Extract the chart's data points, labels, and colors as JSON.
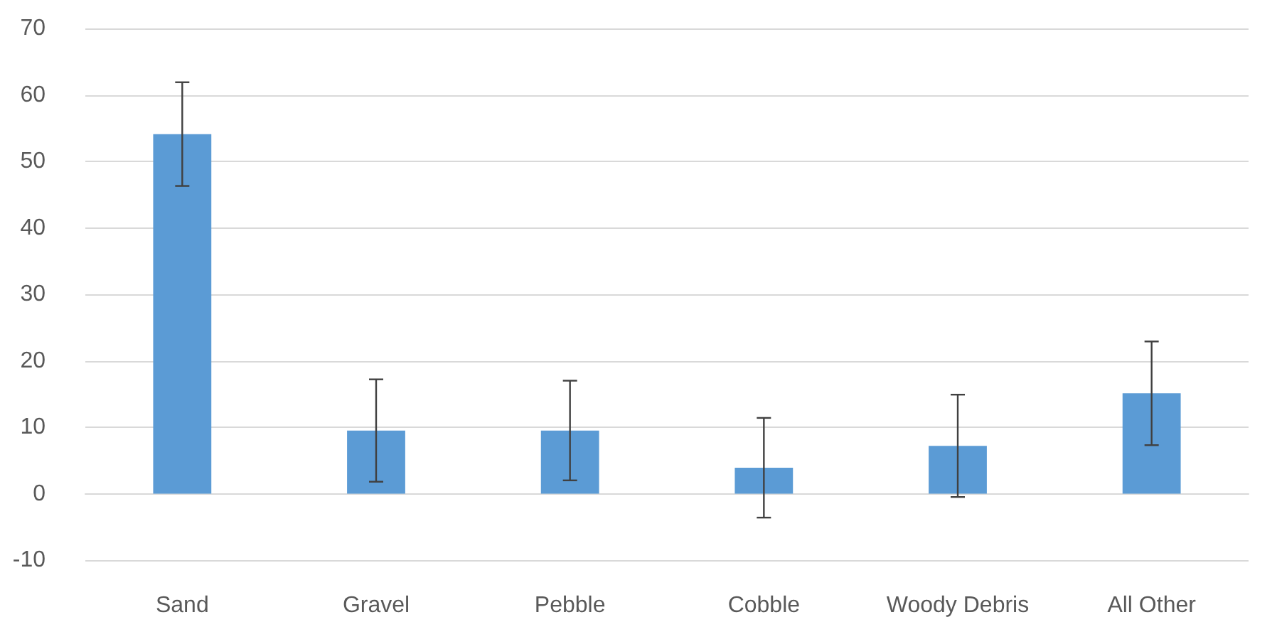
{
  "chart_data": {
    "type": "bar",
    "categories": [
      "Sand",
      "Gravel",
      "Pebble",
      "Cobble",
      "Woody Debris",
      "All Other"
    ],
    "values": [
      54.1,
      9.5,
      9.5,
      3.9,
      7.2,
      15.1
    ],
    "errors": [
      7.8,
      7.7,
      7.5,
      7.5,
      7.7,
      7.8
    ],
    "color": "#5b9bd5",
    "ylim": [
      -10,
      70
    ],
    "yticks": [
      -10,
      0,
      10,
      20,
      30,
      40,
      50,
      60,
      70
    ],
    "grid": "y"
  }
}
